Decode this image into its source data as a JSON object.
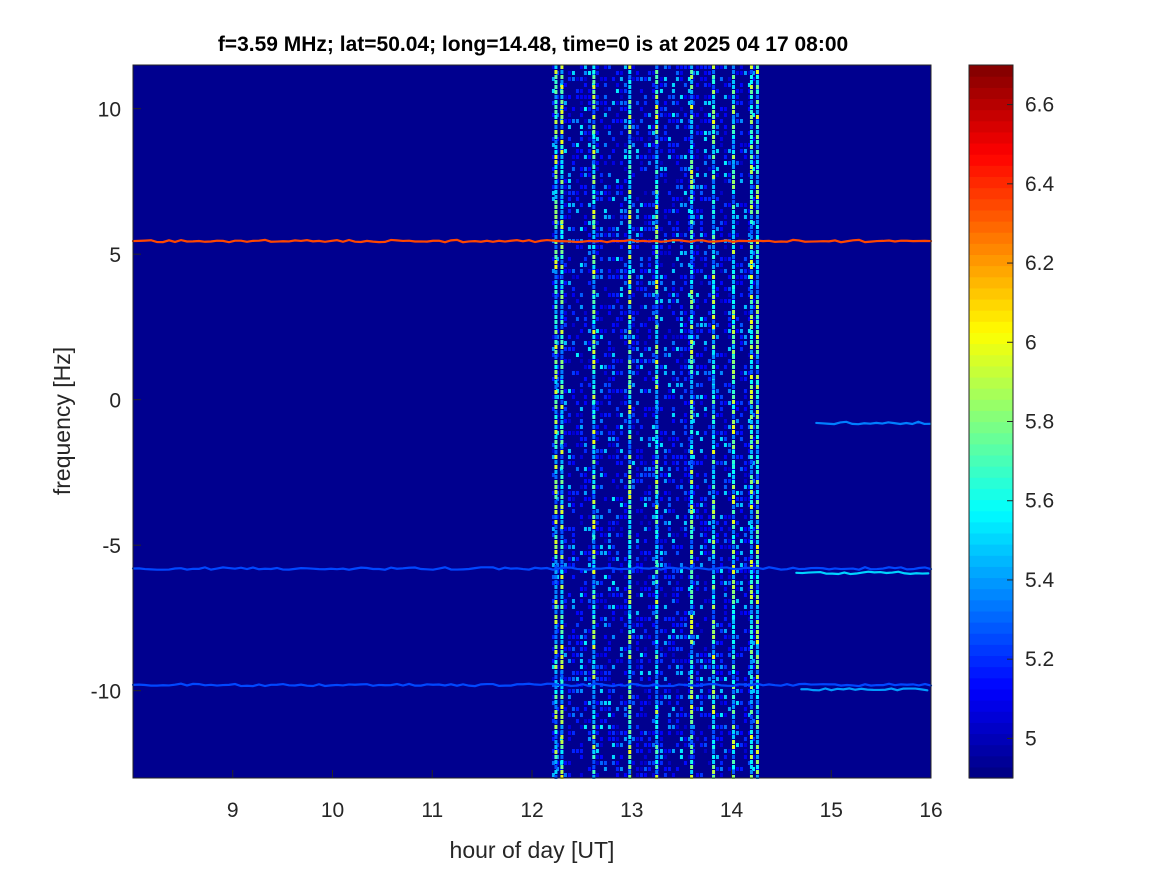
{
  "chart_data": {
    "type": "heatmap",
    "title": "f=3.59 MHz;  lat=50.04; long=14.48, time=0 is at 2025 04 17 08:00",
    "xlabel": "hour of day [UT]",
    "ylabel": "frequency [Hz]",
    "xlim": [
      8,
      16
    ],
    "ylim": [
      -13,
      11.5
    ],
    "xticks": [
      9,
      10,
      11,
      12,
      13,
      14,
      15,
      16
    ],
    "yticks": [
      -10,
      -5,
      0,
      5,
      10
    ],
    "colorbar": {
      "clim": [
        4.9,
        6.7
      ],
      "ticks": [
        5,
        5.2,
        5.4,
        5.6,
        5.8,
        6,
        6.2,
        6.4,
        6.6
      ],
      "colormap": "jet"
    },
    "background_value": 4.95,
    "noisy_interval": {
      "x": [
        12.2,
        14.28
      ],
      "edges": [
        12.2,
        12.32,
        14.2,
        14.28
      ],
      "strong_columns": [
        12.24,
        12.3,
        12.62,
        12.98,
        13.25,
        13.6,
        13.82,
        14.02,
        14.2,
        14.26
      ]
    },
    "traces": [
      {
        "x": [
          8.0,
          16.0
        ],
        "y": [
          5.45,
          5.45
        ],
        "value": 6.35
      },
      {
        "x": [
          8.0,
          16.0
        ],
        "y": [
          -5.8,
          -5.8
        ],
        "value": 5.25
      },
      {
        "x": [
          8.0,
          16.0
        ],
        "y": [
          -9.8,
          -9.8
        ],
        "value": 5.25
      },
      {
        "x": [
          14.85,
          16.0
        ],
        "y": [
          -0.8,
          -0.8
        ],
        "value": 5.35
      },
      {
        "x": [
          14.65,
          16.0
        ],
        "y": [
          -5.95,
          -5.95
        ],
        "value": 5.5
      },
      {
        "x": [
          14.7,
          16.0
        ],
        "y": [
          -9.95,
          -9.95
        ],
        "value": 5.4
      }
    ]
  }
}
